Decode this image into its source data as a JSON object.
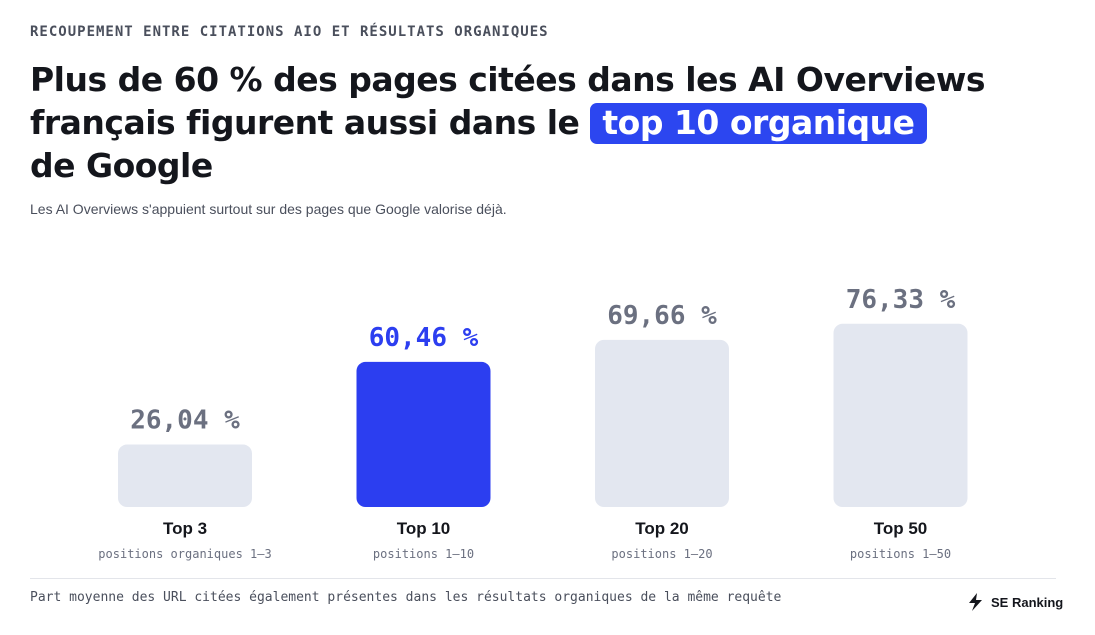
{
  "header": {
    "eyebrow": "RECOUPEMENT ENTRE CITATIONS AIO ET RÉSULTATS ORGANIQUES",
    "title_part1": "Plus de 60 % des pages citées dans les AI Overviews français figurent aussi dans le ",
    "title_highlight": "top 10 organique",
    "title_part2": "de Google",
    "subtitle": "Les AI Overviews s'appuient surtout sur des pages que Google valorise déjà."
  },
  "chart_data": {
    "type": "bar",
    "categories": [
      "Top 3",
      "Top 10",
      "Top 20",
      "Top 50"
    ],
    "sublabels": [
      "positions organiques 1–3",
      "positions 1–10",
      "positions 1–20",
      "positions 1–50"
    ],
    "values": [
      26.04,
      60.46,
      69.66,
      76.33
    ],
    "value_labels": [
      "26,04 %",
      "60,46 %",
      "69,66 %",
      "76,33 %"
    ],
    "highlight_index": 1,
    "colors": {
      "default": "#e3e7f0",
      "highlight": "#2c3ef0",
      "label_default": "#6b7080",
      "label_highlight": "#2c3ef0"
    },
    "grid": false,
    "ylim": [
      0,
      100
    ]
  },
  "footer": {
    "note": "Part moyenne des URL citées également présentes dans les résultats organiques de la même requête",
    "brand": "SE Ranking",
    "brand_icon": "se-ranking-logo-icon"
  }
}
